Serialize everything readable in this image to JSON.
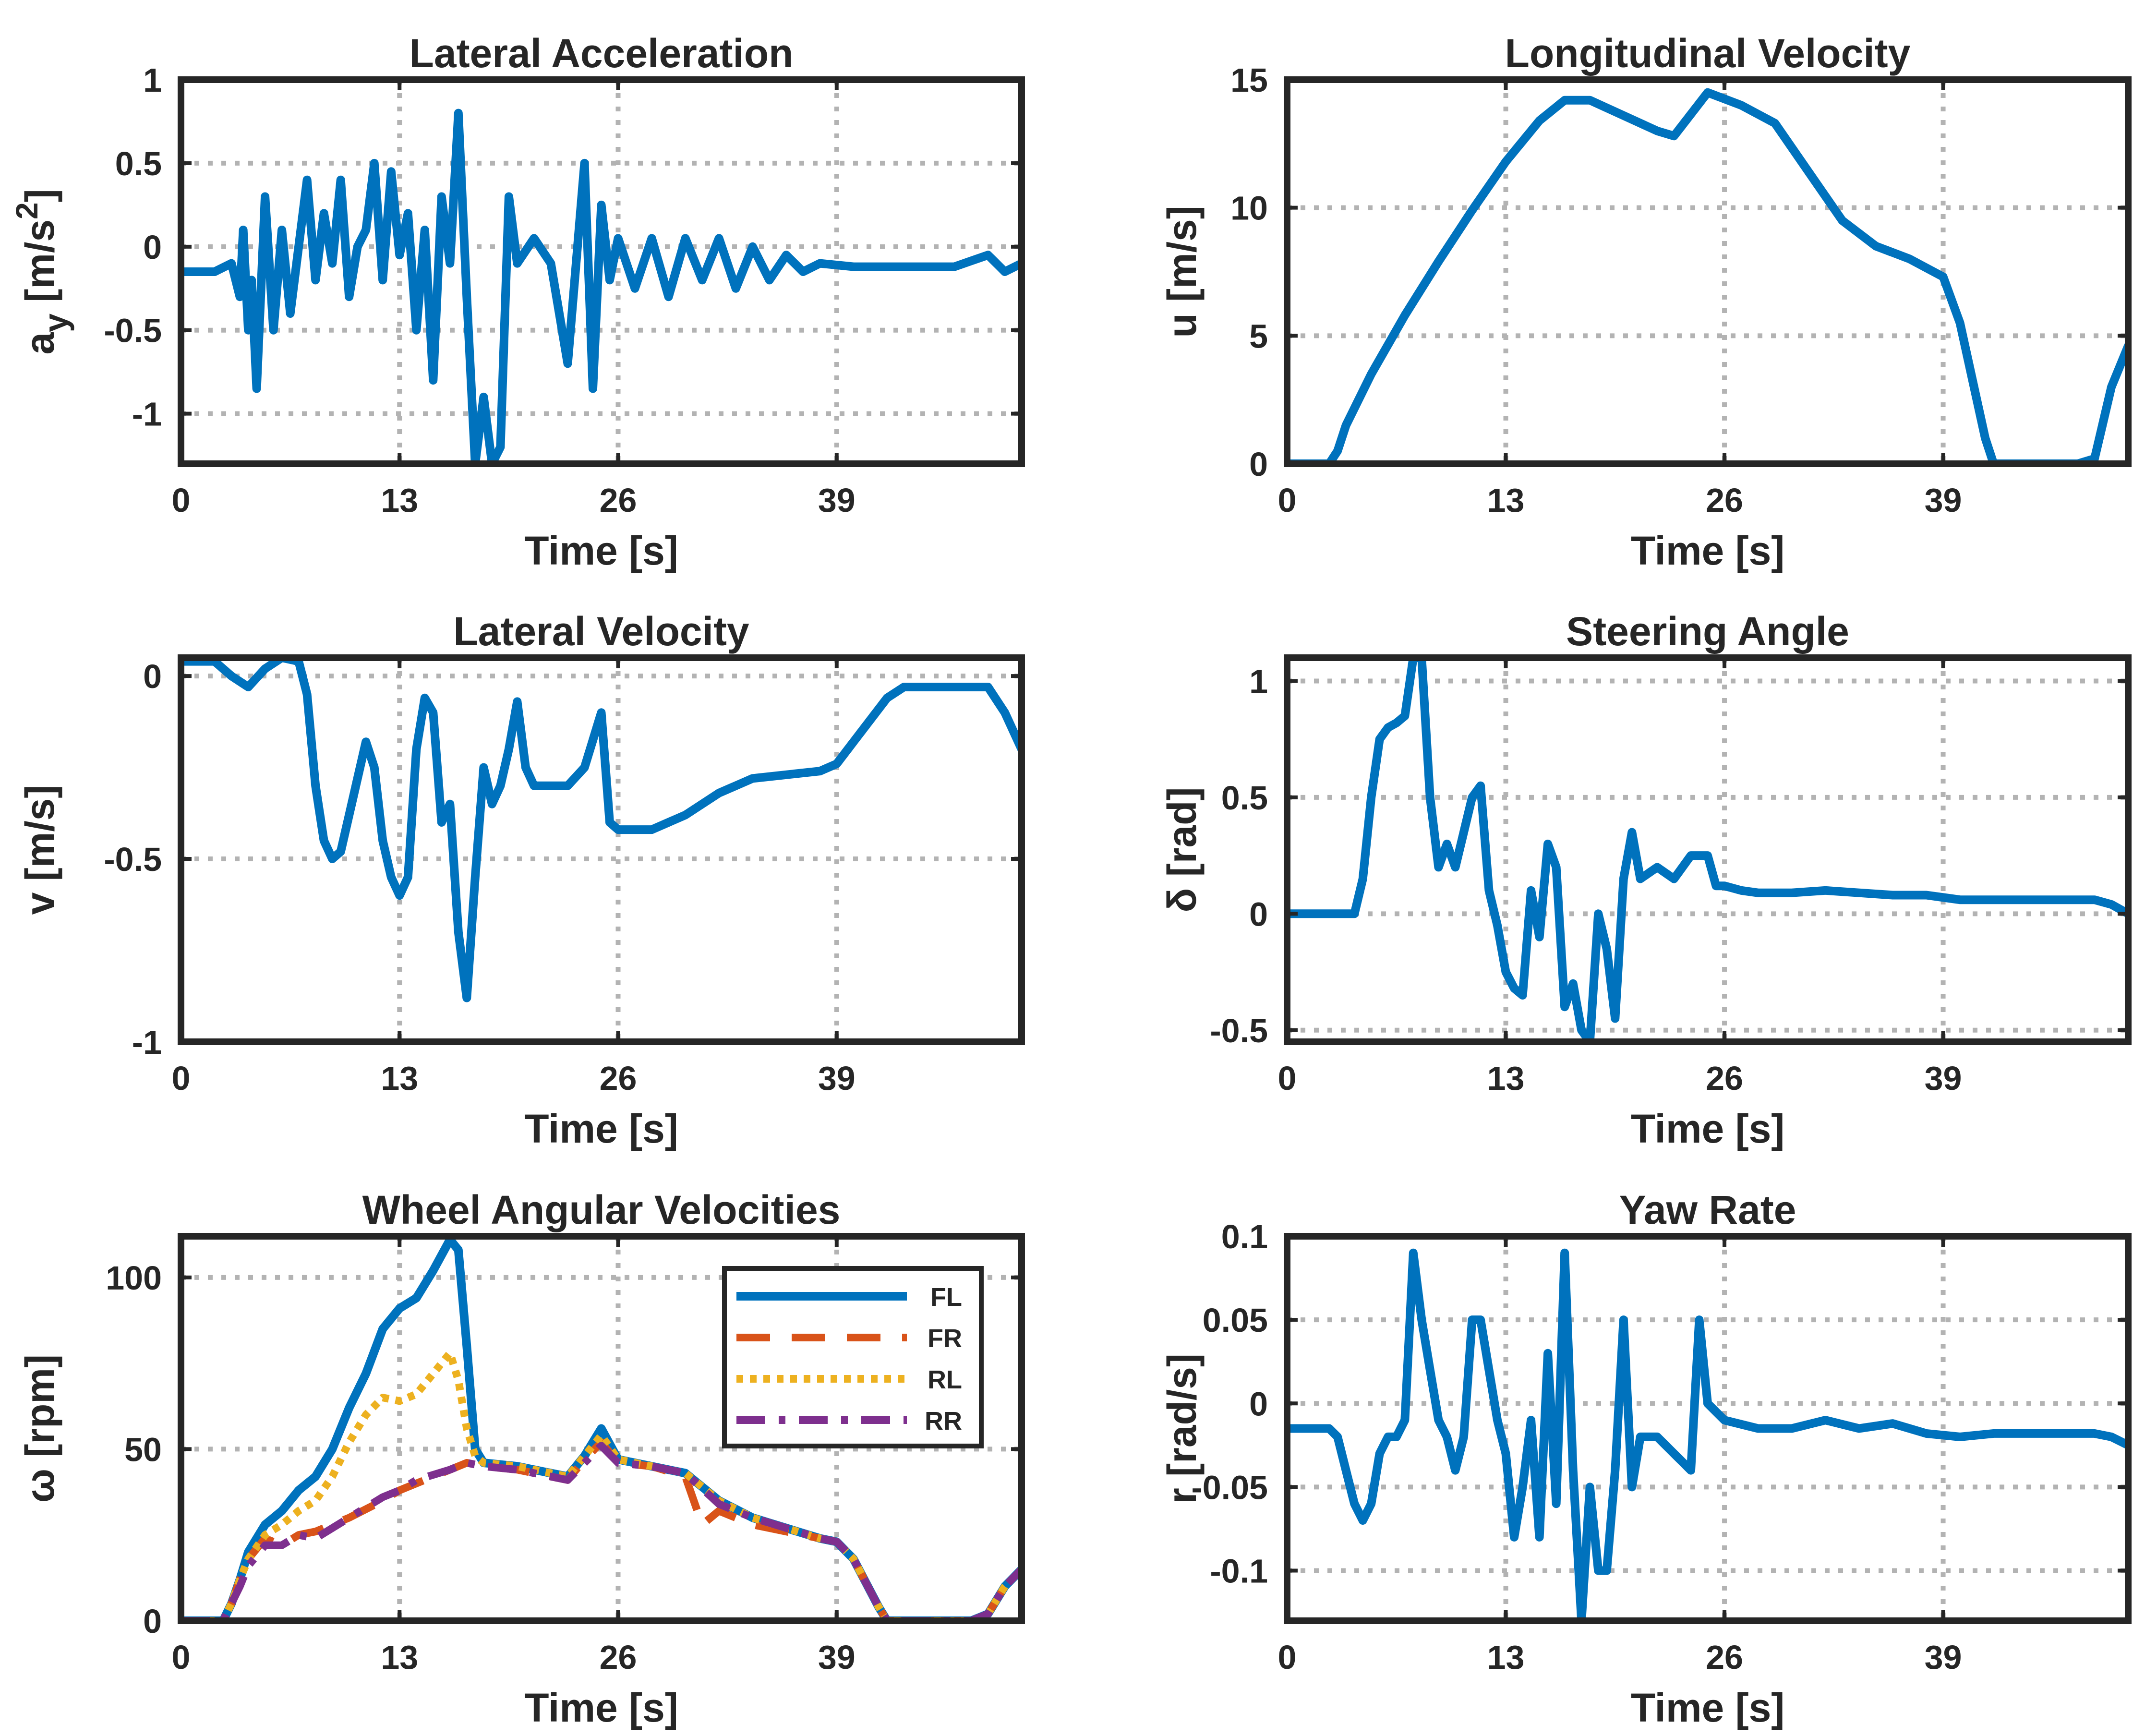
{
  "chart_data": [
    {
      "type": "line",
      "title": "Lateral Acceleration",
      "xlabel": "Time [s]",
      "ylabel": "a_y [m/s^2]",
      "ylabel_parts": {
        "main": "a",
        "sub": "y",
        "mid": " [m/s",
        "sup": "2",
        "end": "]"
      },
      "xlim": [
        0,
        50
      ],
      "ylim": [
        -1.3,
        1.0
      ],
      "xticks": [
        0,
        13,
        26,
        39
      ],
      "xtick_labels": [
        "0",
        "13",
        "26",
        "39"
      ],
      "yticks": [
        -1,
        -0.5,
        0,
        0.5,
        1
      ],
      "ytick_labels": [
        "-1",
        "-0.5",
        "0",
        "0.5",
        "1"
      ],
      "grid": true,
      "series": [
        {
          "name": "a_y",
          "color": "#0072BD",
          "style": "solid",
          "x": [
            0,
            2,
            3,
            3.5,
            3.7,
            4,
            4.2,
            4.5,
            5,
            5.5,
            6,
            6.5,
            7,
            7.5,
            8,
            8.5,
            9,
            9.5,
            10,
            10.5,
            11,
            11.5,
            12,
            12.5,
            13,
            13.5,
            14,
            14.5,
            15,
            15.5,
            16,
            16.5,
            17,
            17.5,
            18,
            18.5,
            19,
            19.5,
            20,
            21,
            22,
            23,
            24,
            24.5,
            25,
            25.5,
            26,
            27,
            28,
            29,
            30,
            31,
            32,
            33,
            34,
            35,
            36,
            37,
            38,
            40,
            42,
            44,
            46,
            48,
            49,
            50
          ],
          "y": [
            -0.15,
            -0.15,
            -0.1,
            -0.3,
            0.1,
            -0.5,
            -0.2,
            -0.85,
            0.3,
            -0.5,
            0.1,
            -0.4,
            0.0,
            0.4,
            -0.2,
            0.2,
            -0.1,
            0.4,
            -0.3,
            0.0,
            0.1,
            0.5,
            -0.2,
            0.45,
            -0.05,
            0.2,
            -0.5,
            0.1,
            -0.8,
            0.3,
            -0.1,
            0.8,
            -0.3,
            -1.3,
            -0.9,
            -1.3,
            -1.2,
            0.3,
            -0.1,
            0.05,
            -0.1,
            -0.7,
            0.5,
            -0.85,
            0.25,
            -0.2,
            0.05,
            -0.25,
            0.05,
            -0.3,
            0.05,
            -0.2,
            0.05,
            -0.25,
            0.0,
            -0.2,
            -0.05,
            -0.15,
            -0.1,
            -0.12,
            -0.12,
            -0.12,
            -0.12,
            -0.05,
            -0.15,
            -0.1
          ]
        }
      ]
    },
    {
      "type": "line",
      "title": "Longitudinal Velocity",
      "xlabel": "Time [s]",
      "ylabel": "u [m/s]",
      "xlim": [
        0,
        50
      ],
      "ylim": [
        0,
        15
      ],
      "xticks": [
        0,
        13,
        26,
        39
      ],
      "xtick_labels": [
        "0",
        "13",
        "26",
        "39"
      ],
      "yticks": [
        0,
        5,
        10,
        15
      ],
      "ytick_labels": [
        "0",
        "5",
        "10",
        "15"
      ],
      "grid": true,
      "series": [
        {
          "name": "u",
          "color": "#0072BD",
          "style": "solid",
          "x": [
            0,
            2.5,
            3,
            3.5,
            5,
            7,
            9,
            11,
            13,
            15,
            16.5,
            18,
            20,
            22,
            23,
            25,
            27,
            29,
            31,
            33,
            35,
            37,
            39,
            40,
            41.5,
            42,
            44,
            46,
            47,
            48,
            49,
            50
          ],
          "y": [
            0,
            0,
            0.5,
            1.5,
            3.5,
            5.8,
            7.9,
            9.9,
            11.8,
            13.4,
            14.2,
            14.2,
            13.6,
            13.0,
            12.8,
            14.5,
            14.0,
            13.3,
            11.4,
            9.5,
            8.5,
            8.0,
            7.3,
            5.5,
            1.0,
            0,
            0,
            0,
            0,
            0.2,
            3.0,
            4.6
          ]
        }
      ]
    },
    {
      "type": "line",
      "title": "Lateral Velocity",
      "xlabel": "Time [s]",
      "ylabel": "v [m/s]",
      "xlim": [
        0,
        50
      ],
      "ylim": [
        -1,
        0.05
      ],
      "xticks": [
        0,
        13,
        26,
        39
      ],
      "xtick_labels": [
        "0",
        "13",
        "26",
        "39"
      ],
      "yticks": [
        -1,
        -0.5,
        0
      ],
      "ytick_labels": [
        "-1",
        "-0.5",
        "0"
      ],
      "grid": true,
      "series": [
        {
          "name": "v",
          "color": "#0072BD",
          "style": "solid",
          "x": [
            0,
            2,
            3,
            4,
            5,
            6,
            7,
            7.5,
            8,
            8.5,
            9,
            9.5,
            10,
            11,
            11.5,
            12,
            12.5,
            13,
            13.5,
            14,
            14.5,
            15,
            15.5,
            16,
            16.5,
            17,
            17.5,
            18,
            18.5,
            19,
            19.5,
            20,
            20.5,
            21,
            22,
            23,
            24,
            25,
            25.5,
            26,
            27,
            28,
            30,
            32,
            34,
            36,
            38,
            39,
            40,
            42,
            43,
            44,
            46,
            48,
            49,
            50
          ],
          "y": [
            0.04,
            0.04,
            0.0,
            -0.03,
            0.02,
            0.05,
            0.04,
            -0.05,
            -0.3,
            -0.45,
            -0.5,
            -0.48,
            -0.38,
            -0.18,
            -0.25,
            -0.45,
            -0.55,
            -0.6,
            -0.55,
            -0.2,
            -0.06,
            -0.1,
            -0.4,
            -0.35,
            -0.7,
            -0.88,
            -0.55,
            -0.25,
            -0.35,
            -0.3,
            -0.2,
            -0.07,
            -0.25,
            -0.3,
            -0.3,
            -0.3,
            -0.25,
            -0.1,
            -0.4,
            -0.42,
            -0.42,
            -0.42,
            -0.38,
            -0.32,
            -0.28,
            -0.27,
            -0.26,
            -0.24,
            -0.18,
            -0.06,
            -0.03,
            -0.03,
            -0.03,
            -0.03,
            -0.1,
            -0.2
          ]
        }
      ]
    },
    {
      "type": "line",
      "title": "Steering Angle",
      "xlabel": "Time [s]",
      "ylabel": "δ [rad]",
      "xlim": [
        0,
        50
      ],
      "ylim": [
        -0.55,
        1.1
      ],
      "xticks": [
        0,
        13,
        26,
        39
      ],
      "xtick_labels": [
        "0",
        "13",
        "26",
        "39"
      ],
      "yticks": [
        -0.5,
        0,
        0.5,
        1
      ],
      "ytick_labels": [
        "-0.5",
        "0",
        "0.5",
        "1"
      ],
      "grid": true,
      "series": [
        {
          "name": "delta",
          "color": "#0072BD",
          "style": "solid",
          "x": [
            0,
            2,
            4,
            4.5,
            5,
            5.5,
            6,
            6.5,
            7,
            7.5,
            8,
            8.5,
            9,
            9.5,
            10,
            10.5,
            11,
            11.5,
            12,
            12.5,
            13,
            13.5,
            14,
            14.5,
            15,
            15.5,
            16,
            16.5,
            17,
            17.5,
            18,
            18.5,
            19,
            19.5,
            20,
            20.5,
            21,
            22,
            23,
            24,
            25,
            25.5,
            26,
            27,
            28,
            30,
            32,
            34,
            36,
            38,
            40,
            42,
            44,
            46,
            48,
            49,
            50
          ],
          "y": [
            0,
            0,
            0,
            0.15,
            0.5,
            0.75,
            0.8,
            0.82,
            0.85,
            1.1,
            1.1,
            0.5,
            0.2,
            0.3,
            0.2,
            0.35,
            0.5,
            0.55,
            0.1,
            -0.05,
            -0.25,
            -0.32,
            -0.35,
            0.1,
            -0.1,
            0.3,
            0.2,
            -0.4,
            -0.3,
            -0.5,
            -0.55,
            0.0,
            -0.15,
            -0.45,
            0.15,
            0.35,
            0.15,
            0.2,
            0.15,
            0.25,
            0.25,
            0.12,
            0.12,
            0.1,
            0.09,
            0.09,
            0.1,
            0.09,
            0.08,
            0.08,
            0.06,
            0.06,
            0.06,
            0.06,
            0.06,
            0.04,
            0.0
          ]
        }
      ]
    },
    {
      "type": "line",
      "title": "Wheel Angular Velocities",
      "xlabel": "Time [s]",
      "ylabel": "ω [rpm]",
      "xlim": [
        0,
        50
      ],
      "ylim": [
        0,
        112
      ],
      "xticks": [
        0,
        13,
        26,
        39
      ],
      "xtick_labels": [
        "0",
        "13",
        "26",
        "39"
      ],
      "yticks": [
        0,
        50,
        100
      ],
      "ytick_labels": [
        "0",
        "50",
        "100"
      ],
      "grid": true,
      "legend": {
        "position": "top-right",
        "entries": [
          "FL",
          "FR",
          "RL",
          "RR"
        ]
      },
      "series": [
        {
          "name": "FL",
          "color": "#0072BD",
          "style": "solid",
          "x": [
            0,
            2.5,
            3,
            3.5,
            4,
            5,
            6,
            7,
            8,
            9,
            10,
            11,
            12,
            13,
            14,
            15,
            16,
            16.5,
            17,
            17.5,
            18,
            20,
            22,
            23,
            24,
            25,
            26,
            28,
            30,
            32,
            34,
            36,
            38,
            39,
            40,
            41.5,
            42,
            44,
            46,
            47,
            48,
            49,
            50
          ],
          "y": [
            0,
            0,
            5,
            12,
            20,
            28,
            32,
            38,
            42,
            50,
            62,
            72,
            85,
            91,
            94,
            102,
            111,
            108,
            80,
            50,
            46,
            45,
            43,
            42,
            48,
            56,
            47,
            45,
            43,
            35,
            30,
            27,
            24,
            23,
            18,
            4,
            0,
            0,
            0,
            0,
            2,
            10,
            15
          ]
        },
        {
          "name": "FR",
          "color": "#D95319",
          "style": "dash",
          "x": [
            0,
            2.5,
            3,
            3.5,
            4,
            5,
            6,
            7,
            8,
            10,
            12,
            13,
            14,
            16,
            17,
            18,
            20,
            22,
            23,
            24,
            25,
            26,
            28,
            30,
            31,
            32,
            34,
            36,
            38,
            39,
            40,
            41.5,
            42,
            44,
            46,
            47,
            48,
            49,
            50
          ],
          "y": [
            0,
            0,
            5,
            12,
            18,
            24,
            22,
            25,
            26,
            30,
            35,
            38,
            40,
            44,
            46,
            45,
            44,
            42,
            41,
            47,
            52,
            46,
            45,
            42,
            28,
            32,
            28,
            26,
            24,
            23,
            18,
            4,
            0,
            0,
            0,
            0,
            2,
            10,
            15
          ]
        },
        {
          "name": "RL",
          "color": "#EDB120",
          "style": "dot",
          "x": [
            0,
            2.5,
            3,
            3.5,
            4,
            5,
            6,
            7,
            8,
            9,
            10,
            11,
            12,
            13,
            14,
            15,
            16,
            16.5,
            17,
            17.5,
            18,
            20,
            22,
            23,
            24,
            25,
            26,
            28,
            30,
            32,
            34,
            36,
            38,
            39,
            40,
            41.5,
            42,
            44,
            46,
            47,
            48,
            49,
            50
          ],
          "y": [
            0,
            0,
            5,
            12,
            18,
            25,
            28,
            32,
            35,
            42,
            52,
            60,
            65,
            64,
            66,
            72,
            78,
            70,
            56,
            48,
            46,
            45,
            43,
            42,
            48,
            54,
            47,
            45,
            43,
            35,
            30,
            27,
            24,
            23,
            18,
            4,
            0,
            0,
            0,
            0,
            2,
            10,
            15
          ]
        },
        {
          "name": "RR",
          "color": "#7E2F8E",
          "style": "dashdot",
          "x": [
            0,
            2.5,
            3,
            3.5,
            4,
            5,
            6,
            7,
            8,
            10,
            12,
            13,
            14,
            16,
            17,
            18,
            20,
            22,
            23,
            24,
            25,
            26,
            28,
            30,
            32,
            34,
            36,
            38,
            39,
            40,
            41.5,
            42,
            44,
            46,
            47,
            48,
            49,
            50
          ],
          "y": [
            0,
            0,
            5,
            10,
            16,
            22,
            22,
            25,
            24,
            30,
            36,
            38,
            41,
            44,
            46,
            45,
            44,
            42,
            41,
            46,
            51,
            46,
            45,
            43,
            34,
            30,
            27,
            24,
            23,
            18,
            4,
            0,
            0,
            0,
            0,
            2,
            10,
            15
          ]
        }
      ]
    },
    {
      "type": "line",
      "title": "Yaw Rate",
      "xlabel": "Time [s]",
      "ylabel": "r [rad/s]",
      "xlim": [
        0,
        50
      ],
      "ylim": [
        -0.13,
        0.1
      ],
      "xticks": [
        0,
        13,
        26,
        39
      ],
      "xtick_labels": [
        "0",
        "13",
        "26",
        "39"
      ],
      "yticks": [
        -0.1,
        -0.05,
        0,
        0.05,
        0.1
      ],
      "ytick_labels": [
        "-0.1",
        "-0.05",
        "0",
        "0.05",
        "0.1"
      ],
      "grid": true,
      "series": [
        {
          "name": "r",
          "color": "#0072BD",
          "style": "solid",
          "x": [
            0,
            2.5,
            3,
            3.5,
            4,
            4.5,
            5,
            5.5,
            6,
            6.5,
            7,
            7.5,
            8,
            8.5,
            9,
            9.5,
            10,
            10.5,
            11,
            11.5,
            12,
            12.5,
            13,
            13.5,
            14,
            14.5,
            15,
            15.5,
            16,
            16.5,
            17,
            17.5,
            18,
            18.5,
            19,
            19.5,
            20,
            20.5,
            21,
            22,
            23,
            24,
            24.5,
            25,
            25.5,
            26,
            28,
            30,
            32,
            34,
            36,
            38,
            40,
            42,
            44,
            46,
            48,
            49,
            50
          ],
          "y": [
            -0.015,
            -0.015,
            -0.02,
            -0.04,
            -0.06,
            -0.07,
            -0.06,
            -0.03,
            -0.02,
            -0.02,
            -0.01,
            0.09,
            0.05,
            0.02,
            -0.01,
            -0.02,
            -0.04,
            -0.02,
            0.05,
            0.05,
            0.02,
            -0.01,
            -0.03,
            -0.08,
            -0.05,
            -0.01,
            -0.08,
            0.03,
            -0.06,
            0.09,
            -0.04,
            -0.13,
            -0.05,
            -0.1,
            -0.1,
            -0.04,
            0.05,
            -0.05,
            -0.02,
            -0.02,
            -0.03,
            -0.04,
            0.05,
            0.0,
            -0.005,
            -0.01,
            -0.015,
            -0.015,
            -0.01,
            -0.015,
            -0.012,
            -0.018,
            -0.02,
            -0.018,
            -0.018,
            -0.018,
            -0.018,
            -0.02,
            -0.025
          ]
        }
      ]
    }
  ]
}
